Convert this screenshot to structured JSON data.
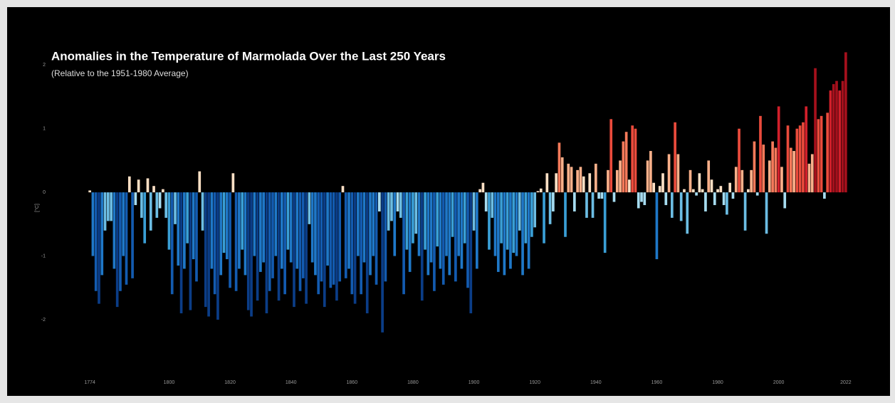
{
  "chart_data": {
    "type": "bar",
    "title": "Anomalies in the Temperature of Marmolada Over the Last 250 Years",
    "subtitle": "(Relative to the 1951-1980 Average)",
    "y_label": "[°C]",
    "x": [
      1774,
      1775,
      1776,
      1777,
      1778,
      1779,
      1780,
      1781,
      1782,
      1783,
      1784,
      1785,
      1786,
      1787,
      1788,
      1789,
      1790,
      1791,
      1792,
      1793,
      1794,
      1795,
      1796,
      1797,
      1798,
      1799,
      1800,
      1801,
      1802,
      1803,
      1804,
      1805,
      1806,
      1807,
      1808,
      1809,
      1810,
      1811,
      1812,
      1813,
      1814,
      1815,
      1816,
      1817,
      1818,
      1819,
      1820,
      1821,
      1822,
      1823,
      1824,
      1825,
      1826,
      1827,
      1828,
      1829,
      1830,
      1831,
      1832,
      1833,
      1834,
      1835,
      1836,
      1837,
      1838,
      1839,
      1840,
      1841,
      1842,
      1843,
      1844,
      1845,
      1846,
      1847,
      1848,
      1849,
      1850,
      1851,
      1852,
      1853,
      1854,
      1855,
      1856,
      1857,
      1858,
      1859,
      1860,
      1861,
      1862,
      1863,
      1864,
      1865,
      1866,
      1867,
      1868,
      1869,
      1870,
      1871,
      1872,
      1873,
      1874,
      1875,
      1876,
      1877,
      1878,
      1879,
      1880,
      1881,
      1882,
      1883,
      1884,
      1885,
      1886,
      1887,
      1888,
      1889,
      1890,
      1891,
      1892,
      1893,
      1894,
      1895,
      1896,
      1897,
      1898,
      1899,
      1900,
      1901,
      1902,
      1903,
      1904,
      1905,
      1906,
      1907,
      1908,
      1909,
      1910,
      1911,
      1912,
      1913,
      1914,
      1915,
      1916,
      1917,
      1918,
      1919,
      1920,
      1921,
      1922,
      1923,
      1924,
      1925,
      1926,
      1927,
      1928,
      1929,
      1930,
      1931,
      1932,
      1933,
      1934,
      1935,
      1936,
      1937,
      1938,
      1939,
      1940,
      1941,
      1942,
      1943,
      1944,
      1945,
      1946,
      1947,
      1948,
      1949,
      1950,
      1951,
      1952,
      1953,
      1954,
      1955,
      1956,
      1957,
      1958,
      1959,
      1960,
      1961,
      1962,
      1963,
      1964,
      1965,
      1966,
      1967,
      1968,
      1969,
      1970,
      1971,
      1972,
      1973,
      1974,
      1975,
      1976,
      1977,
      1978,
      1979,
      1980,
      1981,
      1982,
      1983,
      1984,
      1985,
      1986,
      1987,
      1988,
      1989,
      1990,
      1991,
      1992,
      1993,
      1994,
      1995,
      1996,
      1997,
      1998,
      1999,
      2000,
      2001,
      2002,
      2003,
      2004,
      2005,
      2006,
      2007,
      2008,
      2009,
      2010,
      2011,
      2012,
      2013,
      2014,
      2015,
      2016,
      2017,
      2018,
      2019,
      2020,
      2021,
      2022
    ],
    "values": [
      0.03,
      -1.0,
      -1.55,
      -1.75,
      -1.3,
      -0.6,
      -0.45,
      -0.45,
      -1.2,
      -1.8,
      -1.55,
      -1.0,
      -1.45,
      0.25,
      -1.35,
      -0.2,
      0.2,
      -0.4,
      -0.8,
      0.22,
      -0.6,
      0.1,
      -0.4,
      -0.25,
      0.05,
      -0.4,
      -0.9,
      -1.6,
      -0.5,
      -1.15,
      -1.9,
      -1.2,
      -0.8,
      -1.85,
      -1.05,
      -1.4,
      0.33,
      -0.6,
      -1.8,
      -1.95,
      -1.2,
      -1.6,
      -2.0,
      -1.3,
      -0.95,
      -1.05,
      -1.5,
      0.3,
      -1.55,
      -1.2,
      -0.9,
      -1.3,
      -1.85,
      -1.95,
      -1.0,
      -1.7,
      -1.25,
      -1.1,
      -1.9,
      -1.55,
      -1.35,
      -1.0,
      -1.7,
      -1.2,
      -1.6,
      -0.9,
      -1.1,
      -1.8,
      -1.2,
      -1.55,
      -1.35,
      -1.75,
      -0.5,
      -1.1,
      -1.3,
      -1.6,
      -1.4,
      -1.8,
      -1.15,
      -1.5,
      -1.45,
      -1.7,
      -1.4,
      0.1,
      -1.35,
      -1.2,
      -1.6,
      -1.75,
      -1.0,
      -1.6,
      -1.1,
      -1.9,
      -1.3,
      -1.0,
      -1.45,
      -0.3,
      -2.2,
      -1.4,
      -0.6,
      -0.45,
      -1.0,
      -0.3,
      -0.4,
      -1.6,
      -0.9,
      -1.25,
      -0.8,
      -0.65,
      -1.0,
      -1.7,
      -0.9,
      -1.3,
      -1.1,
      -1.55,
      -0.85,
      -1.2,
      -1.45,
      -1.0,
      -1.3,
      -0.7,
      -1.4,
      -1.0,
      -1.2,
      -0.8,
      -1.5,
      -1.9,
      -0.6,
      -1.2,
      0.05,
      0.15,
      -0.3,
      -0.9,
      -0.4,
      -1.0,
      -1.25,
      -0.8,
      -1.3,
      -0.9,
      -1.2,
      -0.95,
      -1.0,
      -0.6,
      -1.3,
      -0.8,
      -1.2,
      -0.7,
      -0.55,
      0.02,
      0.06,
      -0.8,
      0.3,
      -0.5,
      -0.3,
      0.3,
      0.78,
      0.55,
      -0.7,
      0.45,
      0.4,
      -0.3,
      0.35,
      0.4,
      0.25,
      -0.4,
      0.3,
      -0.4,
      0.45,
      -0.1,
      -0.1,
      -0.95,
      0.35,
      1.15,
      -0.15,
      0.35,
      0.5,
      0.8,
      0.95,
      0.2,
      1.05,
      1.0,
      -0.25,
      -0.15,
      -0.2,
      0.5,
      0.65,
      0.15,
      -1.05,
      0.1,
      0.3,
      -0.2,
      0.6,
      -0.4,
      1.1,
      0.6,
      -0.45,
      0.05,
      -0.65,
      0.35,
      0.05,
      -0.05,
      0.3,
      0.05,
      -0.3,
      0.5,
      0.2,
      -0.2,
      0.05,
      0.1,
      -0.2,
      -0.35,
      0.15,
      -0.1,
      0.4,
      1.0,
      0.35,
      -0.6,
      0.05,
      0.35,
      0.8,
      -0.05,
      1.2,
      0.75,
      -0.65,
      0.5,
      0.8,
      0.7,
      1.35,
      0.4,
      -0.25,
      1.05,
      0.7,
      0.65,
      1.0,
      1.05,
      1.1,
      1.35,
      0.45,
      0.6,
      1.95,
      1.15,
      1.2,
      -0.1,
      1.25,
      1.6,
      1.7,
      1.75,
      1.6,
      1.75,
      2.2
    ],
    "colors": {
      "negative": [
        "#a6dcf0",
        "#6cbde3",
        "#3a9fd6",
        "#1f78c8",
        "#135bb0",
        "#0b3d87"
      ],
      "positive": [
        "#fde0c5",
        "#fbb08a",
        "#f67a5a",
        "#ea4b3c",
        "#d11f2a",
        "#a5101c"
      ]
    },
    "xlim": [
      1773.5,
      2022.5
    ],
    "xticks": [
      1774,
      1800,
      1820,
      1840,
      1860,
      1880,
      1900,
      1920,
      1940,
      1960,
      1980,
      2000,
      2022
    ],
    "ylim": [
      -2.85,
      2.35
    ],
    "yticks": [
      -2,
      -1,
      0,
      1,
      2
    ],
    "grid": false
  }
}
